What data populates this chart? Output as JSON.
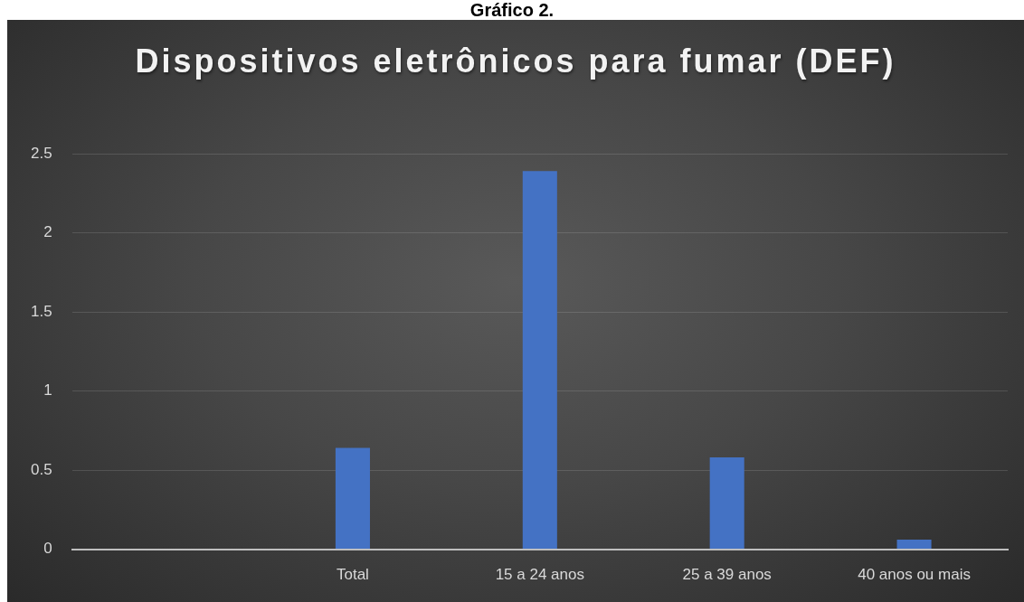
{
  "chart_data": {
    "type": "bar",
    "title": "Dispositivos eletrônicos para fumar (DEF)",
    "annotations": [
      "Gráfico 2."
    ],
    "categories": [
      null,
      "Total",
      "15 a 24 anos",
      "25 a 39 anos",
      "40 anos ou mais"
    ],
    "values": [
      null,
      0.64,
      2.39,
      0.58,
      0.06
    ],
    "color": "#4472c4",
    "ylim": [
      0,
      2.5
    ],
    "yticks": [
      0,
      0.5,
      1,
      1.5,
      2,
      2.5
    ],
    "grid": "y"
  }
}
